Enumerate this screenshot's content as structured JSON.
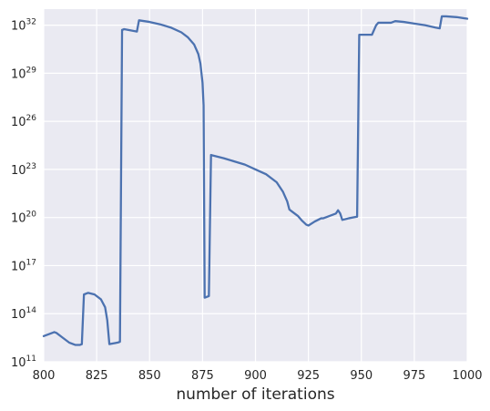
{
  "chart_data": {
    "type": "line",
    "title": "",
    "xlabel": "number of iterations",
    "ylabel": "",
    "yscale": "log",
    "xlim": [
      800,
      1000
    ],
    "ylim_exponent": [
      11,
      33
    ],
    "grid": true,
    "x_ticks": [
      800,
      825,
      850,
      875,
      900,
      925,
      950,
      975,
      1000
    ],
    "y_ticks": [
      {
        "base": "10",
        "exp": "11"
      },
      {
        "base": "10",
        "exp": "14"
      },
      {
        "base": "10",
        "exp": "17"
      },
      {
        "base": "10",
        "exp": "20"
      },
      {
        "base": "10",
        "exp": "23"
      },
      {
        "base": "10",
        "exp": "26"
      },
      {
        "base": "10",
        "exp": "29"
      },
      {
        "base": "10",
        "exp": "32"
      }
    ],
    "colors": {
      "line": "#4c72b0",
      "plot_background": "#eaeaf2",
      "grid": "#ffffff"
    },
    "series": [
      {
        "log10_values": true,
        "points": [
          [
            800,
            12.6
          ],
          [
            803,
            12.75
          ],
          [
            805,
            12.85
          ],
          [
            806,
            12.8
          ],
          [
            809,
            12.5
          ],
          [
            812,
            12.2
          ],
          [
            815,
            12.05
          ],
          [
            817,
            12.05
          ],
          [
            818,
            12.1
          ],
          [
            819,
            15.2
          ],
          [
            821,
            15.3
          ],
          [
            824,
            15.2
          ],
          [
            827,
            14.9
          ],
          [
            829,
            14.4
          ],
          [
            830,
            13.6
          ],
          [
            831,
            12.1
          ],
          [
            833,
            12.15
          ],
          [
            835,
            12.2
          ],
          [
            836,
            12.25
          ],
          [
            837,
            31.7
          ],
          [
            838,
            31.75
          ],
          [
            840,
            31.7
          ],
          [
            842,
            31.65
          ],
          [
            844,
            31.6
          ],
          [
            845,
            32.3
          ],
          [
            850,
            32.2
          ],
          [
            855,
            32.05
          ],
          [
            860,
            31.85
          ],
          [
            865,
            31.55
          ],
          [
            868,
            31.25
          ],
          [
            871,
            30.8
          ],
          [
            873,
            30.2
          ],
          [
            874,
            29.6
          ],
          [
            875,
            28.4
          ],
          [
            875.5,
            27.0
          ],
          [
            876,
            15.0
          ],
          [
            878,
            15.1
          ],
          [
            879,
            23.9
          ],
          [
            885,
            23.7
          ],
          [
            890,
            23.5
          ],
          [
            895,
            23.3
          ],
          [
            900,
            23.0
          ],
          [
            905,
            22.7
          ],
          [
            910,
            22.2
          ],
          [
            913,
            21.6
          ],
          [
            915,
            21.0
          ],
          [
            916,
            20.5
          ],
          [
            917,
            20.4
          ],
          [
            920,
            20.1
          ],
          [
            922,
            19.8
          ],
          [
            924,
            19.55
          ],
          [
            925,
            19.5
          ],
          [
            928,
            19.75
          ],
          [
            931,
            19.95
          ],
          [
            932,
            19.95
          ],
          [
            935,
            20.1
          ],
          [
            938,
            20.25
          ],
          [
            939,
            20.45
          ],
          [
            940,
            20.25
          ],
          [
            941,
            19.85
          ],
          [
            944,
            19.95
          ],
          [
            946,
            20.0
          ],
          [
            948,
            20.05
          ],
          [
            949,
            31.4
          ],
          [
            951,
            31.4
          ],
          [
            953,
            31.4
          ],
          [
            955,
            31.4
          ],
          [
            957,
            32.0
          ],
          [
            958,
            32.15
          ],
          [
            960,
            32.15
          ],
          [
            962,
            32.15
          ],
          [
            964,
            32.15
          ],
          [
            965,
            32.2
          ],
          [
            966,
            32.25
          ],
          [
            970,
            32.2
          ],
          [
            975,
            32.1
          ],
          [
            980,
            32.0
          ],
          [
            985,
            31.85
          ],
          [
            987,
            31.8
          ],
          [
            988,
            32.55
          ],
          [
            990,
            32.55
          ],
          [
            995,
            32.5
          ],
          [
            1000,
            32.4
          ]
        ]
      }
    ]
  }
}
